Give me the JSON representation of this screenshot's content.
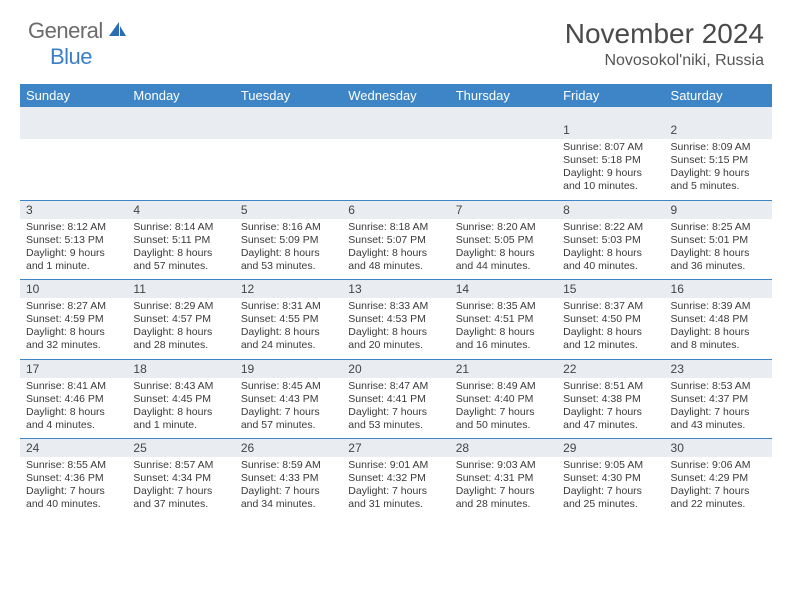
{
  "brand": {
    "part1": "General",
    "part2": "Blue"
  },
  "title": "November 2024",
  "location": "Novosokol'niki, Russia",
  "colors": {
    "header_bg": "#3d85c6",
    "header_text": "#ffffff",
    "daynum_bg": "#e9edf1",
    "border": "#3d85c6",
    "body_text": "#3a3a3a",
    "logo_gray": "#6b6b6b",
    "logo_blue": "#3d7fc4"
  },
  "day_headers": [
    "Sunday",
    "Monday",
    "Tuesday",
    "Wednesday",
    "Thursday",
    "Friday",
    "Saturday"
  ],
  "weeks": [
    [
      null,
      null,
      null,
      null,
      null,
      {
        "n": "1",
        "sr": "Sunrise: 8:07 AM",
        "ss": "Sunset: 5:18 PM",
        "d1": "Daylight: 9 hours",
        "d2": "and 10 minutes."
      },
      {
        "n": "2",
        "sr": "Sunrise: 8:09 AM",
        "ss": "Sunset: 5:15 PM",
        "d1": "Daylight: 9 hours",
        "d2": "and 5 minutes."
      }
    ],
    [
      {
        "n": "3",
        "sr": "Sunrise: 8:12 AM",
        "ss": "Sunset: 5:13 PM",
        "d1": "Daylight: 9 hours",
        "d2": "and 1 minute."
      },
      {
        "n": "4",
        "sr": "Sunrise: 8:14 AM",
        "ss": "Sunset: 5:11 PM",
        "d1": "Daylight: 8 hours",
        "d2": "and 57 minutes."
      },
      {
        "n": "5",
        "sr": "Sunrise: 8:16 AM",
        "ss": "Sunset: 5:09 PM",
        "d1": "Daylight: 8 hours",
        "d2": "and 53 minutes."
      },
      {
        "n": "6",
        "sr": "Sunrise: 8:18 AM",
        "ss": "Sunset: 5:07 PM",
        "d1": "Daylight: 8 hours",
        "d2": "and 48 minutes."
      },
      {
        "n": "7",
        "sr": "Sunrise: 8:20 AM",
        "ss": "Sunset: 5:05 PM",
        "d1": "Daylight: 8 hours",
        "d2": "and 44 minutes."
      },
      {
        "n": "8",
        "sr": "Sunrise: 8:22 AM",
        "ss": "Sunset: 5:03 PM",
        "d1": "Daylight: 8 hours",
        "d2": "and 40 minutes."
      },
      {
        "n": "9",
        "sr": "Sunrise: 8:25 AM",
        "ss": "Sunset: 5:01 PM",
        "d1": "Daylight: 8 hours",
        "d2": "and 36 minutes."
      }
    ],
    [
      {
        "n": "10",
        "sr": "Sunrise: 8:27 AM",
        "ss": "Sunset: 4:59 PM",
        "d1": "Daylight: 8 hours",
        "d2": "and 32 minutes."
      },
      {
        "n": "11",
        "sr": "Sunrise: 8:29 AM",
        "ss": "Sunset: 4:57 PM",
        "d1": "Daylight: 8 hours",
        "d2": "and 28 minutes."
      },
      {
        "n": "12",
        "sr": "Sunrise: 8:31 AM",
        "ss": "Sunset: 4:55 PM",
        "d1": "Daylight: 8 hours",
        "d2": "and 24 minutes."
      },
      {
        "n": "13",
        "sr": "Sunrise: 8:33 AM",
        "ss": "Sunset: 4:53 PM",
        "d1": "Daylight: 8 hours",
        "d2": "and 20 minutes."
      },
      {
        "n": "14",
        "sr": "Sunrise: 8:35 AM",
        "ss": "Sunset: 4:51 PM",
        "d1": "Daylight: 8 hours",
        "d2": "and 16 minutes."
      },
      {
        "n": "15",
        "sr": "Sunrise: 8:37 AM",
        "ss": "Sunset: 4:50 PM",
        "d1": "Daylight: 8 hours",
        "d2": "and 12 minutes."
      },
      {
        "n": "16",
        "sr": "Sunrise: 8:39 AM",
        "ss": "Sunset: 4:48 PM",
        "d1": "Daylight: 8 hours",
        "d2": "and 8 minutes."
      }
    ],
    [
      {
        "n": "17",
        "sr": "Sunrise: 8:41 AM",
        "ss": "Sunset: 4:46 PM",
        "d1": "Daylight: 8 hours",
        "d2": "and 4 minutes."
      },
      {
        "n": "18",
        "sr": "Sunrise: 8:43 AM",
        "ss": "Sunset: 4:45 PM",
        "d1": "Daylight: 8 hours",
        "d2": "and 1 minute."
      },
      {
        "n": "19",
        "sr": "Sunrise: 8:45 AM",
        "ss": "Sunset: 4:43 PM",
        "d1": "Daylight: 7 hours",
        "d2": "and 57 minutes."
      },
      {
        "n": "20",
        "sr": "Sunrise: 8:47 AM",
        "ss": "Sunset: 4:41 PM",
        "d1": "Daylight: 7 hours",
        "d2": "and 53 minutes."
      },
      {
        "n": "21",
        "sr": "Sunrise: 8:49 AM",
        "ss": "Sunset: 4:40 PM",
        "d1": "Daylight: 7 hours",
        "d2": "and 50 minutes."
      },
      {
        "n": "22",
        "sr": "Sunrise: 8:51 AM",
        "ss": "Sunset: 4:38 PM",
        "d1": "Daylight: 7 hours",
        "d2": "and 47 minutes."
      },
      {
        "n": "23",
        "sr": "Sunrise: 8:53 AM",
        "ss": "Sunset: 4:37 PM",
        "d1": "Daylight: 7 hours",
        "d2": "and 43 minutes."
      }
    ],
    [
      {
        "n": "24",
        "sr": "Sunrise: 8:55 AM",
        "ss": "Sunset: 4:36 PM",
        "d1": "Daylight: 7 hours",
        "d2": "and 40 minutes."
      },
      {
        "n": "25",
        "sr": "Sunrise: 8:57 AM",
        "ss": "Sunset: 4:34 PM",
        "d1": "Daylight: 7 hours",
        "d2": "and 37 minutes."
      },
      {
        "n": "26",
        "sr": "Sunrise: 8:59 AM",
        "ss": "Sunset: 4:33 PM",
        "d1": "Daylight: 7 hours",
        "d2": "and 34 minutes."
      },
      {
        "n": "27",
        "sr": "Sunrise: 9:01 AM",
        "ss": "Sunset: 4:32 PM",
        "d1": "Daylight: 7 hours",
        "d2": "and 31 minutes."
      },
      {
        "n": "28",
        "sr": "Sunrise: 9:03 AM",
        "ss": "Sunset: 4:31 PM",
        "d1": "Daylight: 7 hours",
        "d2": "and 28 minutes."
      },
      {
        "n": "29",
        "sr": "Sunrise: 9:05 AM",
        "ss": "Sunset: 4:30 PM",
        "d1": "Daylight: 7 hours",
        "d2": "and 25 minutes."
      },
      {
        "n": "30",
        "sr": "Sunrise: 9:06 AM",
        "ss": "Sunset: 4:29 PM",
        "d1": "Daylight: 7 hours",
        "d2": "and 22 minutes."
      }
    ]
  ]
}
